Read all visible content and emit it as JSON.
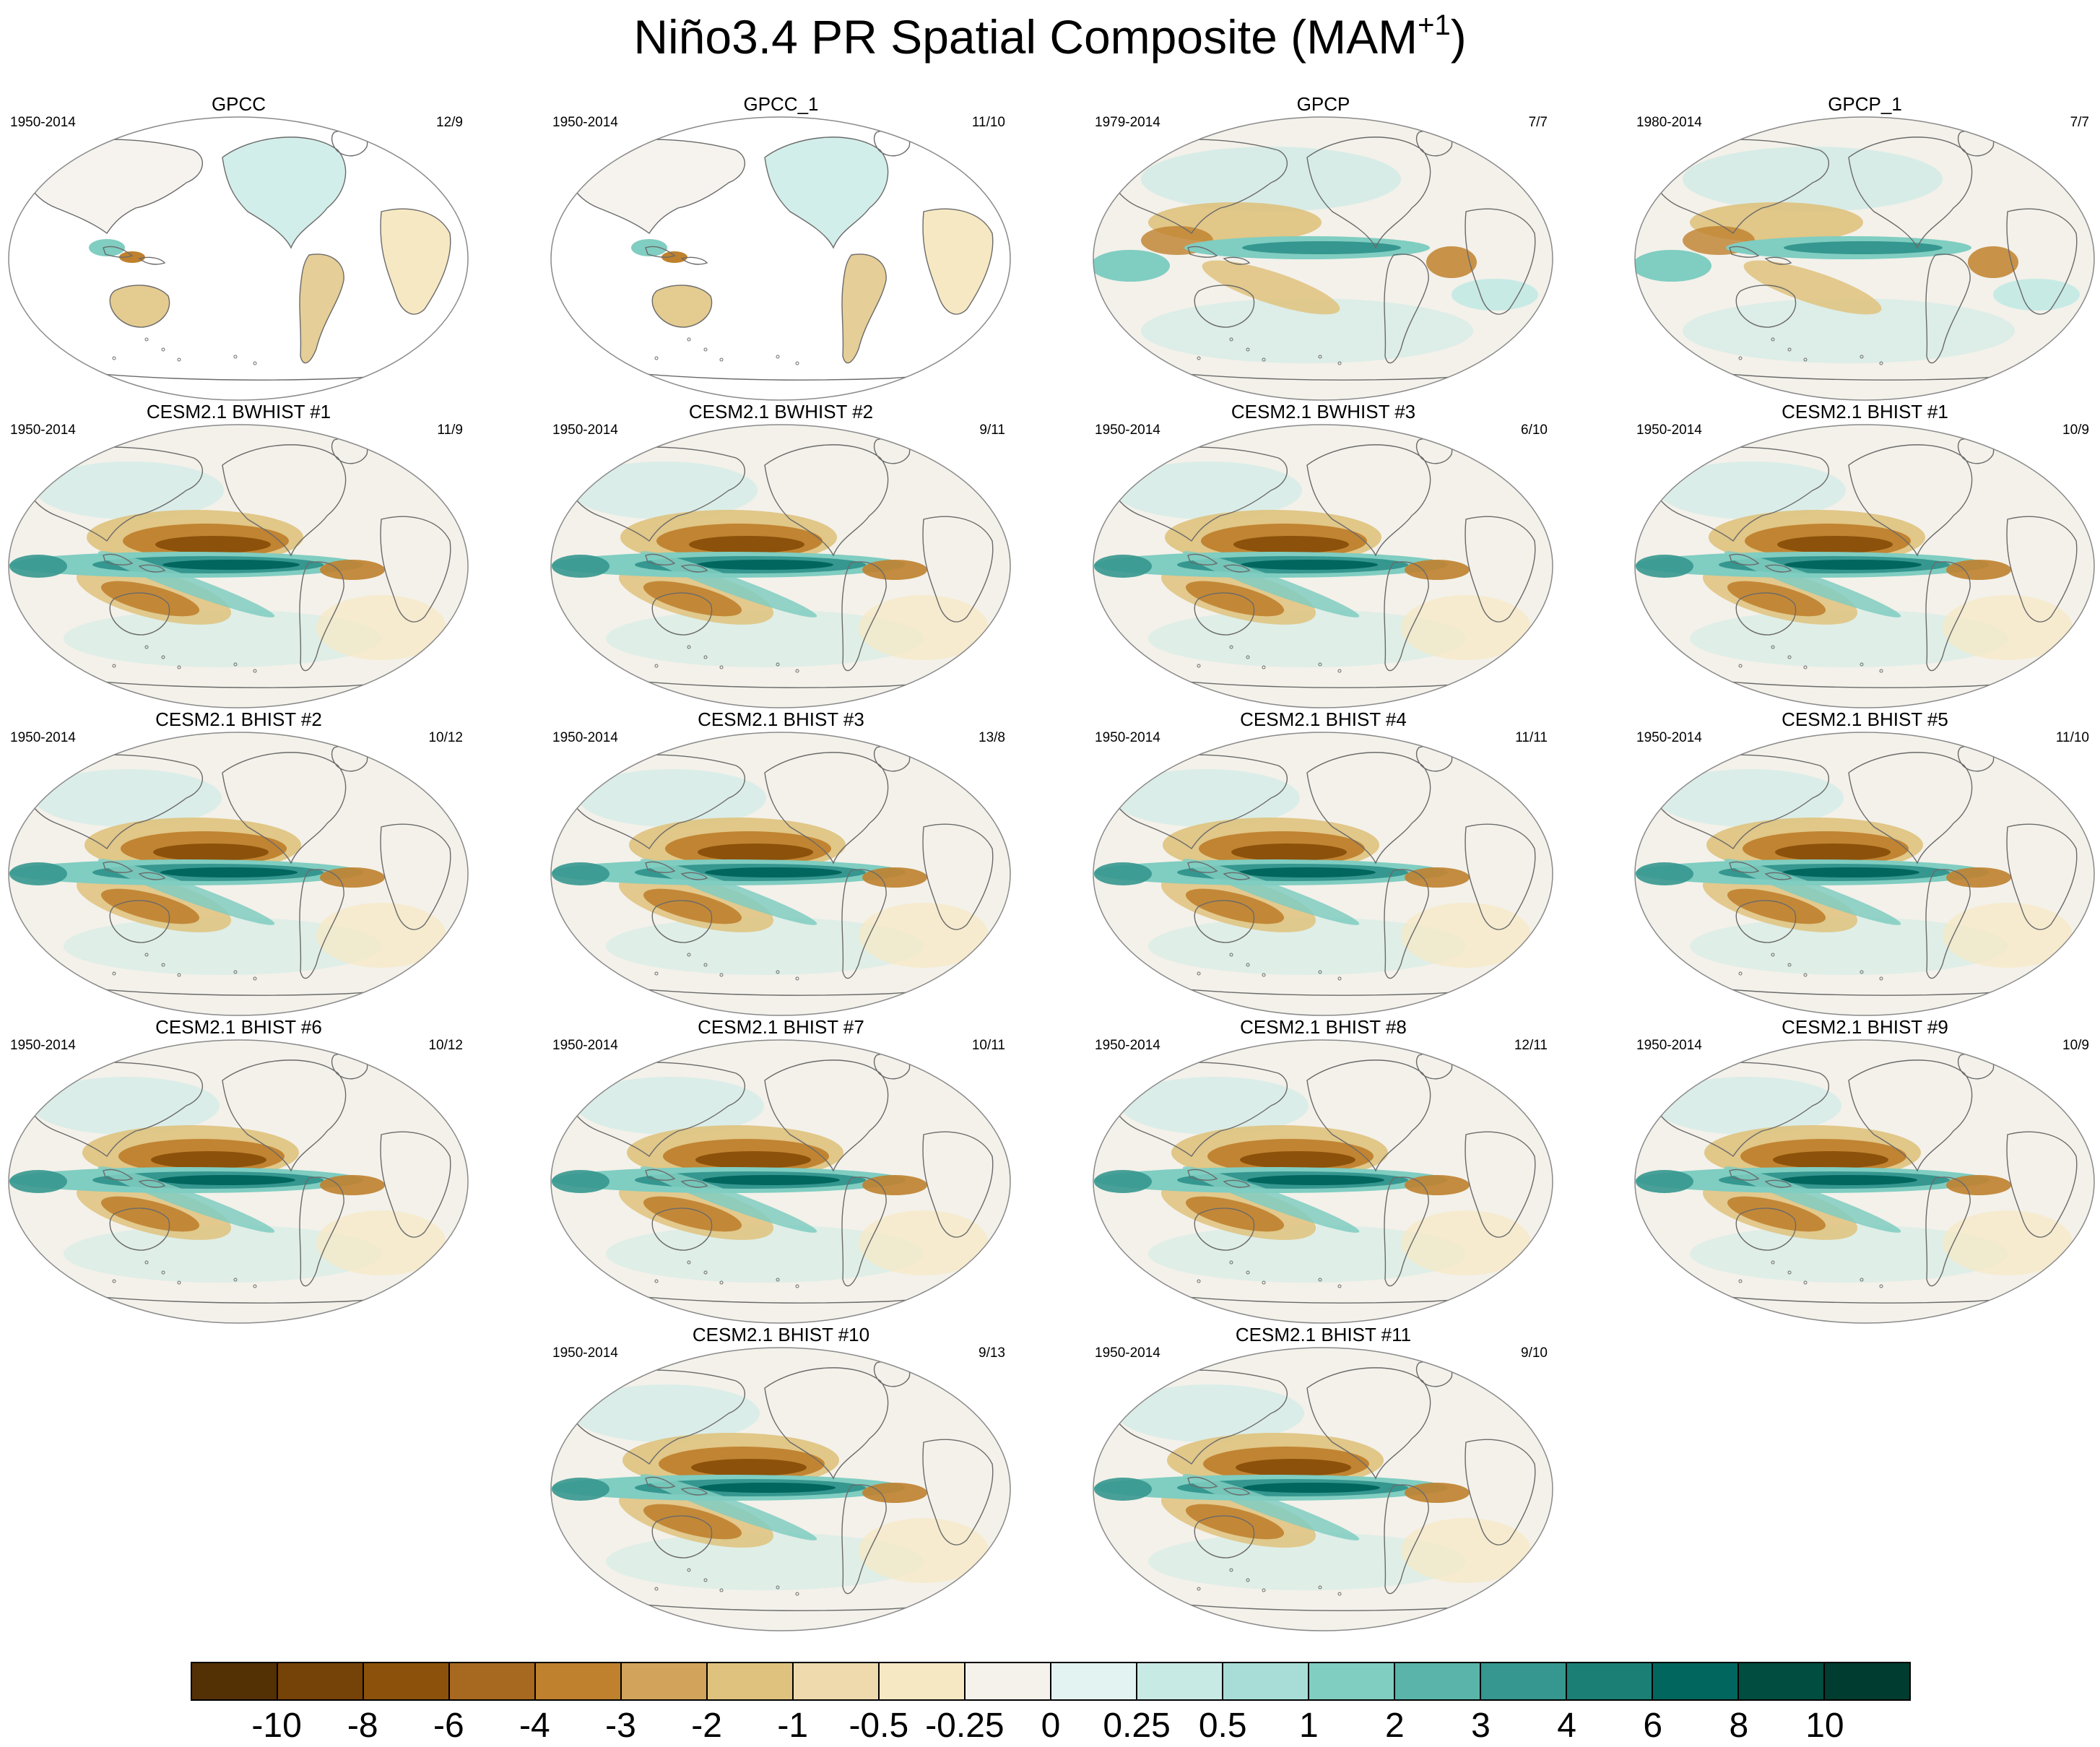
{
  "figure": {
    "title": "Niño3.4 PR Spatial Composite (MAM",
    "title_sup": "+1",
    "title_end": ")"
  },
  "panels": [
    {
      "title": "GPCC",
      "years": "1950-2014",
      "count": "12/9",
      "kind": "obs-land"
    },
    {
      "title": "GPCC_1",
      "years": "1950-2014",
      "count": "11/10",
      "kind": "obs-land"
    },
    {
      "title": "GPCP",
      "years": "1979-2014",
      "count": "7/7",
      "kind": "obs-global"
    },
    {
      "title": "GPCP_1",
      "years": "1980-2014",
      "count": "7/7",
      "kind": "obs-global"
    },
    {
      "title": "CESM2.1 BWHIST #1",
      "years": "1950-2014",
      "count": "11/9",
      "kind": "model"
    },
    {
      "title": "CESM2.1 BWHIST #2",
      "years": "1950-2014",
      "count": "9/11",
      "kind": "model"
    },
    {
      "title": "CESM2.1 BWHIST #3",
      "years": "1950-2014",
      "count": "6/10",
      "kind": "model"
    },
    {
      "title": "CESM2.1 BHIST #1",
      "years": "1950-2014",
      "count": "10/9",
      "kind": "model"
    },
    {
      "title": "CESM2.1 BHIST #2",
      "years": "1950-2014",
      "count": "10/12",
      "kind": "model"
    },
    {
      "title": "CESM2.1 BHIST #3",
      "years": "1950-2014",
      "count": "13/8",
      "kind": "model"
    },
    {
      "title": "CESM2.1 BHIST #4",
      "years": "1950-2014",
      "count": "11/11",
      "kind": "model"
    },
    {
      "title": "CESM2.1 BHIST #5",
      "years": "1950-2014",
      "count": "11/10",
      "kind": "model"
    },
    {
      "title": "CESM2.1 BHIST #6",
      "years": "1950-2014",
      "count": "10/12",
      "kind": "model"
    },
    {
      "title": "CESM2.1 BHIST #7",
      "years": "1950-2014",
      "count": "10/11",
      "kind": "model"
    },
    {
      "title": "CESM2.1 BHIST #8",
      "years": "1950-2014",
      "count": "12/11",
      "kind": "model"
    },
    {
      "title": "CESM2.1 BHIST #9",
      "years": "1950-2014",
      "count": "10/9",
      "kind": "model"
    },
    {
      "title": "CESM2.1 BHIST #10",
      "years": "1950-2014",
      "count": "9/13",
      "kind": "model"
    },
    {
      "title": "CESM2.1 BHIST #11",
      "years": "1950-2014",
      "count": "9/10",
      "kind": "model"
    }
  ],
  "colorbar": {
    "labels": [
      "-10",
      "-8",
      "-6",
      "-4",
      "-3",
      "-2",
      "-1",
      "-0.5",
      "-0.25",
      "0",
      "0.25",
      "0.5",
      "1",
      "2",
      "3",
      "4",
      "6",
      "8",
      "10"
    ],
    "colors": [
      "#543005",
      "#754208",
      "#8c510a",
      "#a76920",
      "#bf812d",
      "#d1a35b",
      "#dfc27d",
      "#eedaad",
      "#f6e8c3",
      "#f5f2ec",
      "#e3f3f1",
      "#c7eae5",
      "#a7ddd6",
      "#80cdc1",
      "#5ab4a9",
      "#35978f",
      "#1c7f76",
      "#01665e",
      "#014d40",
      "#003c30"
    ]
  },
  "map_colors": {
    "brown_strong": "#8c510a",
    "brown_mid": "#bf812d",
    "brown_light": "#dfc27d",
    "brown_pale": "#f6e8c3",
    "teal_strong": "#01665e",
    "teal_mid": "#35978f",
    "teal_light": "#80cdc1",
    "teal_pale": "#c7eae5",
    "coast": "#6a6a6a",
    "ocean_bg": "#f3f1ea",
    "land_bg": "#f6f3ee"
  }
}
